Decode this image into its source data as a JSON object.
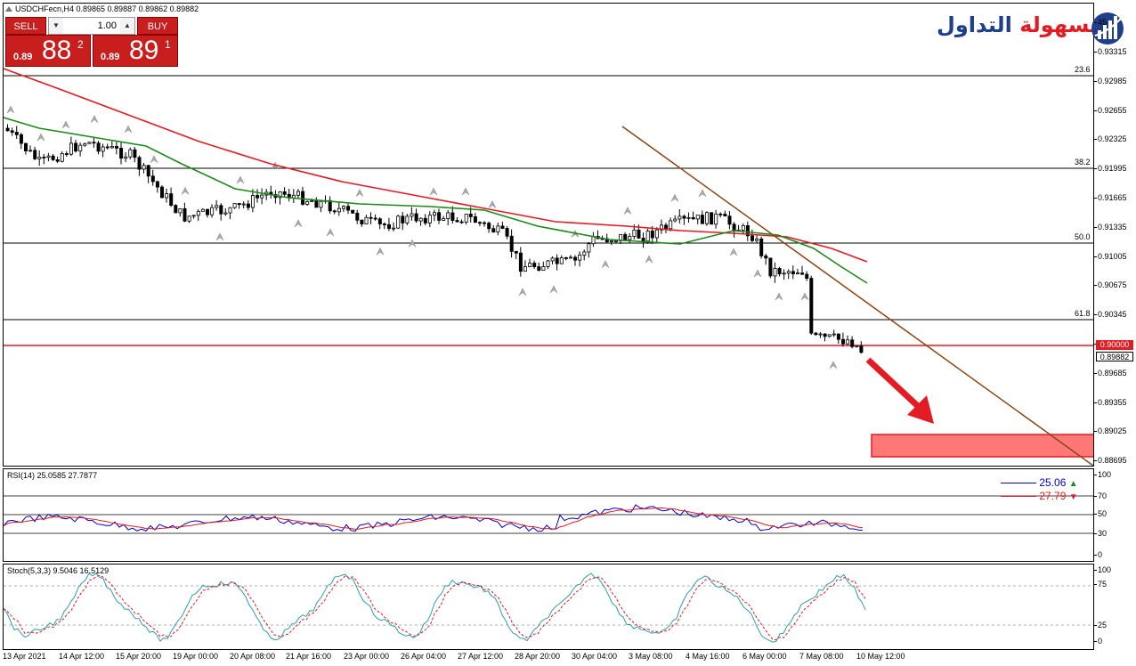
{
  "symbol": {
    "title": "USDCHFecn,H4  0.89865 0.89887 0.89862 0.89882"
  },
  "trade_panel": {
    "sell_label": "SELL",
    "buy_label": "BUY",
    "lot_value": "1.00",
    "lot_down": "▼",
    "lot_up": "▲",
    "sell_small": "0.89",
    "sell_big": "88",
    "sell_sup": "2",
    "buy_small": "0.89",
    "buy_big": "89",
    "buy_sup": "1"
  },
  "logo": {
    "text_red": "بسهولة",
    "text_blue": "التداول"
  },
  "price_axis": {
    "labels": [
      "0.93315",
      "0.92985",
      "0.92655",
      "0.92325",
      "0.91995",
      "0.91665",
      "0.91335",
      "0.91005",
      "0.90675",
      "0.90345",
      "0.90015",
      "0.89685",
      "0.89355",
      "0.89025",
      "0.88695"
    ],
    "top_partial": "45",
    "current_price": "0.89882",
    "level_price": "0.90000"
  },
  "fibo": {
    "levels": [
      {
        "label": "23.6"
      },
      {
        "label": "38.2"
      },
      {
        "label": "50.0"
      },
      {
        "label": "61.8"
      }
    ]
  },
  "rsi": {
    "title": "RSI(14) 25.0585 27.7877",
    "value1": "25.06",
    "value2": "27.79",
    "axis": [
      "100",
      "70",
      "50",
      "30",
      "0"
    ]
  },
  "stoch": {
    "title": "Stoch(5,3,3) 9.5046 16.5129",
    "axis": [
      "100",
      "75",
      "25",
      "0"
    ]
  },
  "time_axis": [
    "13 Apr 2021",
    "14 Apr 12:00",
    "15 Apr 20:00",
    "19 Apr 00:00",
    "20 Apr 08:00",
    "21 Apr 16:00",
    "23 Apr 00:00",
    "26 Apr 04:00",
    "27 Apr 12:00",
    "28 Apr 20:00",
    "30 Apr 04:00",
    "3 May 08:00",
    "4 May 16:00",
    "6 May 00:00",
    "7 May 08:00",
    "10 May 12:00"
  ],
  "colors": {
    "accent_red": "#c81e1e",
    "ma_red": "#e31b23",
    "ma_green": "#1a8a1a",
    "trend": "#8b4513",
    "rsi_blue": "#0000cc",
    "stoch_teal": "#2aa0a8"
  }
}
